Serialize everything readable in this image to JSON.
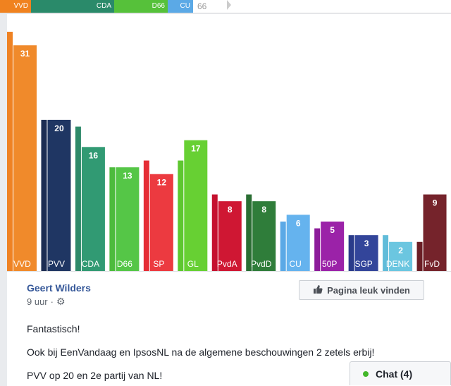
{
  "coalition_bar": {
    "segments": [
      {
        "label": "VVD",
        "color": "#f0821f"
      },
      {
        "label": "CDA",
        "color": "#2a8a6a"
      },
      {
        "label": "D66",
        "color": "#56c13a"
      },
      {
        "label": "CU",
        "color": "#5ba9e6"
      }
    ],
    "total": "66"
  },
  "chart_data": {
    "type": "bar",
    "categories": [
      "VVD",
      "PVV",
      "CDA",
      "D66",
      "SP",
      "GL",
      "PvdA",
      "PvdD",
      "CU",
      "50P",
      "SGP",
      "DENK",
      "FvD"
    ],
    "series": [
      {
        "values": [
          33,
          20,
          19,
          13,
          14,
          14,
          9,
          9,
          5,
          4,
          3,
          3,
          2
        ]
      },
      {
        "values": [
          31,
          20,
          16,
          13,
          12,
          17,
          8,
          8,
          6,
          5,
          3,
          2,
          9
        ]
      }
    ],
    "data_labels": [
      "31",
      "20",
      "16",
      "13",
      "12",
      "17",
      "8",
      "8",
      "6",
      "5",
      "3",
      "2",
      "9"
    ],
    "colors_previous": [
      "#ef8223",
      "#1c2d53",
      "#2e8a6a",
      "#4dbb3d",
      "#e52d35",
      "#5ec730",
      "#c5112f",
      "#2a6e33",
      "#5ba9e6",
      "#8d1c9a",
      "#2a3b8a",
      "#61bcd9",
      "#6a1e25"
    ],
    "colors_current": [
      "#f08a2b",
      "#1f3663",
      "#319a73",
      "#55c647",
      "#ec3a40",
      "#67d033",
      "#cf1733",
      "#2f7d3a",
      "#65b3ee",
      "#9b22a8",
      "#33459a",
      "#6bc6e0",
      "#75232b"
    ],
    "ylim": [
      0,
      33
    ]
  },
  "post": {
    "author": "Geert Wilders",
    "time": "9 uur",
    "like_label": "Pagina leuk vinden",
    "line1": "Fantastisch!",
    "line2": "Ook bij EenVandaag en IpsosNL na de algemene beschouwingen 2 zetels erbij!",
    "line3": "PVV op 20 en 2e partij van NL!"
  },
  "chat": {
    "label": "Chat (4)"
  }
}
